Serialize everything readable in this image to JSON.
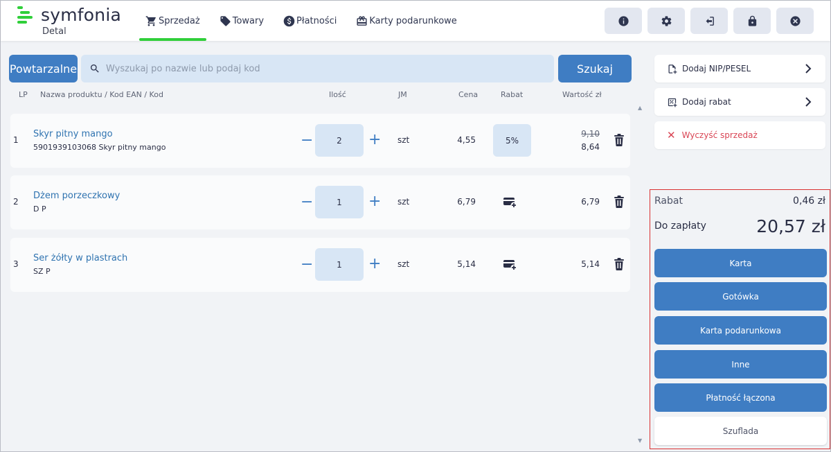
{
  "header": {
    "logo_text": "symfonia",
    "logo_sub": "Detal",
    "nav": [
      {
        "label": "Sprzedaż",
        "icon": "cart-icon",
        "active": true
      },
      {
        "label": "Towary",
        "icon": "tag-icon",
        "active": false
      },
      {
        "label": "Płatności",
        "icon": "dollar-icon",
        "active": false
      },
      {
        "label": "Karty podarunkowe",
        "icon": "gift-card-icon",
        "active": false
      }
    ],
    "buttons": [
      "info-icon",
      "gear-icon",
      "logout-icon",
      "lock-icon",
      "close-icon"
    ]
  },
  "search": {
    "repeat_label": "Powtarzalne",
    "placeholder": "Wyszukaj po nazwie lub podaj kod",
    "search_label": "Szukaj"
  },
  "columns": {
    "lp": "LP",
    "name": "Nazwa produktu / Kod EAN / Kod",
    "qty": "Ilość",
    "jm": "JM",
    "price": "Cena",
    "discount": "Rabat",
    "value": "Wartość zł"
  },
  "rows": [
    {
      "lp": "1",
      "name": "Skyr pitny mango",
      "code": "5901939103068 Skyr pitny mango",
      "qty": "2",
      "jm": "szt",
      "price": "4,55",
      "discount": "5%",
      "value_old": "9,10",
      "value": "8,64"
    },
    {
      "lp": "2",
      "name": "Dżem porzeczkowy",
      "code": "D P",
      "qty": "1",
      "jm": "szt",
      "price": "6,79",
      "discount": "",
      "value": "6,79"
    },
    {
      "lp": "3",
      "name": "Ser żółty w plastrach",
      "code": "SZ P",
      "qty": "1",
      "jm": "szt",
      "price": "5,14",
      "discount": "",
      "value": "5,14"
    }
  ],
  "side": {
    "nip_label": "Dodaj NIP/PESEL",
    "discount_label": "Dodaj rabat",
    "clear_label": "Wyczyść sprzedaż"
  },
  "summary": {
    "discount_label": "Rabat",
    "discount_value": "0,46 zł",
    "total_label": "Do zapłaty",
    "total_value": "20,57 zł"
  },
  "payments": [
    "Karta",
    "Gotówka",
    "Karta podarunkowa",
    "Inne",
    "Płatność łączona",
    "Szuflada"
  ],
  "colors": {
    "accent": "#3f7dc3",
    "brand_green": "#30cf3a",
    "danger": "#d94554",
    "highlight_border": "#d93030"
  }
}
